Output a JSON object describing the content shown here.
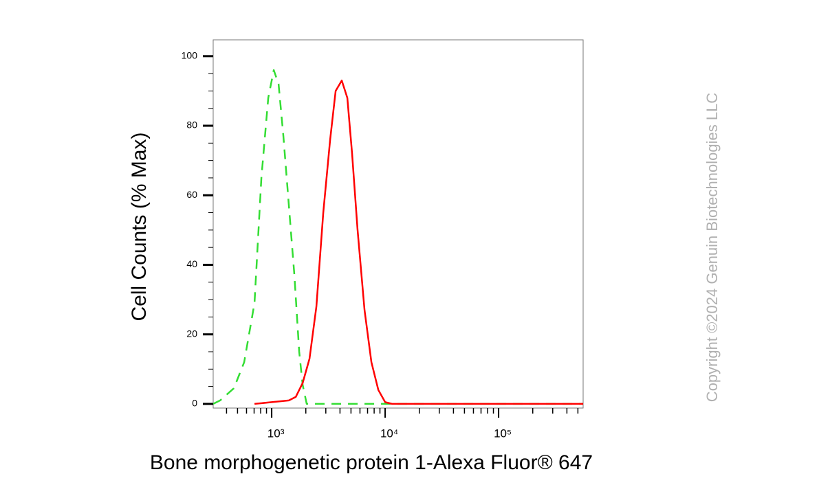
{
  "chart_data": {
    "type": "line",
    "x_label": "Bone morphogenetic protein 1-Alexa Fluor® 647",
    "y_label": "Cell Counts (% Max)",
    "watermark": "Copyright ©2024 Genuin Biotechnologies LLC",
    "x_scale": "log",
    "xlim": [
      305,
      556000
    ],
    "ylim": [
      -1.2,
      104.7
    ],
    "xticks": [
      {
        "value": 1000,
        "label": "10³"
      },
      {
        "value": 10000,
        "label": "10⁴"
      },
      {
        "value": 100000,
        "label": "10⁵"
      }
    ],
    "xminorticks": [
      400,
      500,
      600,
      700,
      800,
      900,
      2000,
      3000,
      4000,
      5000,
      6000,
      7000,
      8000,
      9000,
      20000,
      30000,
      40000,
      50000,
      60000,
      70000,
      80000,
      90000,
      200000,
      300000,
      400000,
      500000
    ],
    "yticks": [
      0,
      20,
      40,
      60,
      80,
      100
    ],
    "yminorticks": [
      5,
      10,
      15,
      25,
      30,
      35,
      45,
      50,
      55,
      65,
      70,
      75,
      85,
      90,
      95
    ],
    "series": [
      {
        "color": "#33dd33",
        "dash": true,
        "x": [
          305,
          351,
          464,
          572,
          706,
          811,
          933,
          1043,
          1150,
          1268,
          1417,
          1585,
          1748,
          1875,
          2036,
          556000
        ],
        "values": [
          0,
          1,
          4.5,
          12,
          29,
          65,
          88,
          96,
          92,
          77,
          57,
          37,
          15,
          5.5,
          0,
          0
        ]
      },
      {
        "color": "#ff0000",
        "dash": false,
        "x": [
          706,
          1000,
          1417,
          1629,
          1875,
          2154,
          2477,
          2848,
          3275,
          3660,
          4146,
          4640,
          5113,
          5715,
          6577,
          7568,
          8707,
          10000,
          11500,
          556000
        ],
        "values": [
          0,
          0.5,
          1,
          2,
          6,
          13,
          28,
          55,
          76,
          90,
          93,
          88,
          72,
          50,
          27,
          12,
          4,
          0.5,
          0,
          0
        ]
      }
    ]
  }
}
